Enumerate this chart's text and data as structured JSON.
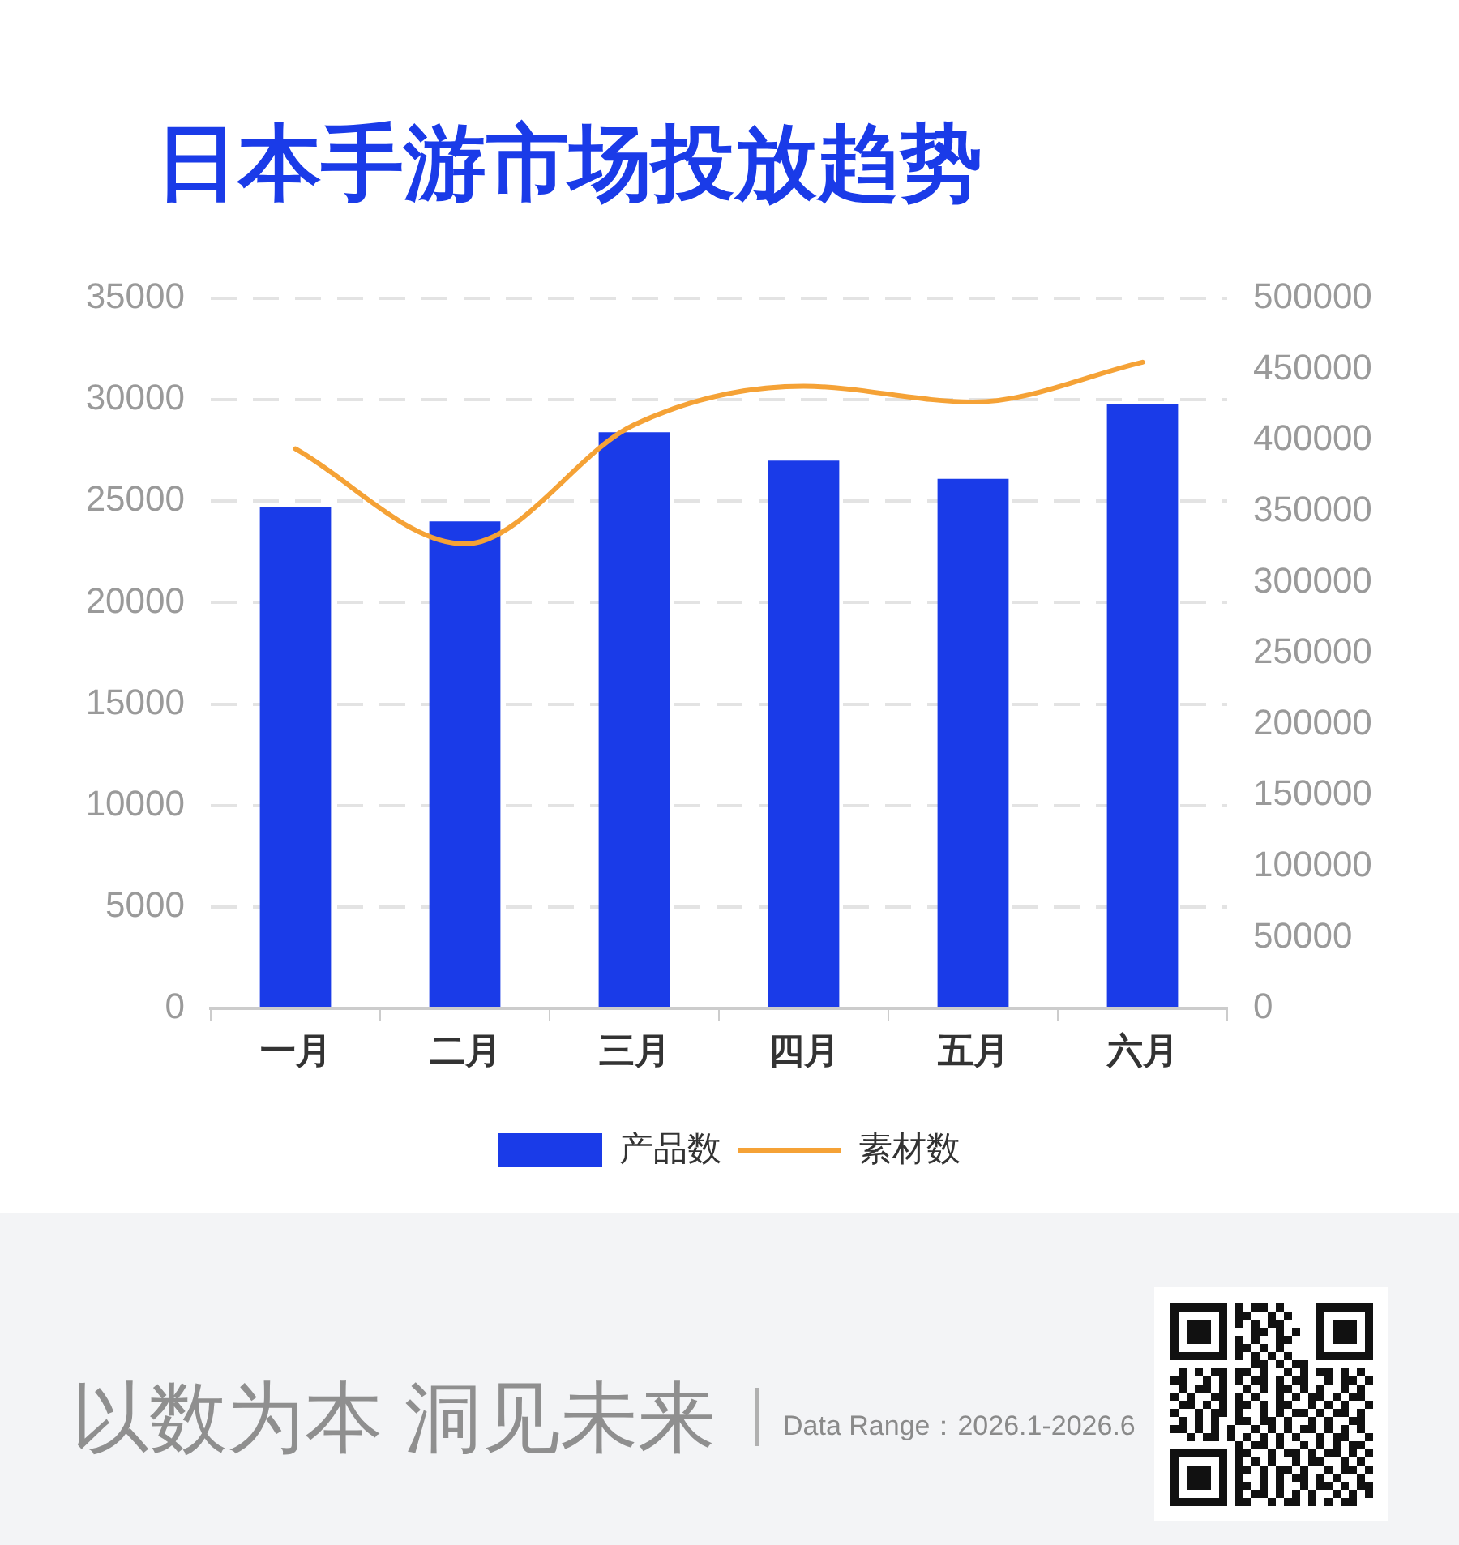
{
  "chart_data": {
    "type": "bar",
    "title": "日本手游市场投放趋势",
    "categories": [
      "一月",
      "二月",
      "三月",
      "四月",
      "五月",
      "六月"
    ],
    "series": [
      {
        "name": "产品数",
        "color": "#1a3be8",
        "values": [
          24700,
          24000,
          28400,
          27000,
          26100,
          29800
        ]
      },
      {
        "name": "素材数",
        "type": "line",
        "axis": "y2",
        "color": "#f5a236",
        "values": [
          394000,
          327000,
          411000,
          438000,
          427000,
          455000
        ]
      }
    ],
    "ylim": [
      0,
      35000
    ],
    "yticks": [
      0,
      5000,
      10000,
      15000,
      20000,
      25000,
      30000,
      35000
    ],
    "y2lim": [
      0,
      500000
    ],
    "y2ticks": [
      0,
      50000,
      100000,
      150000,
      200000,
      250000,
      300000,
      350000,
      400000,
      450000,
      500000
    ],
    "grid": "y",
    "legend": "bottom",
    "marker": "none",
    "line_style": "solid",
    "annotations": [
      "以数为本 洞见未来",
      "Data Range：2026.1-2026.6"
    ]
  }
}
